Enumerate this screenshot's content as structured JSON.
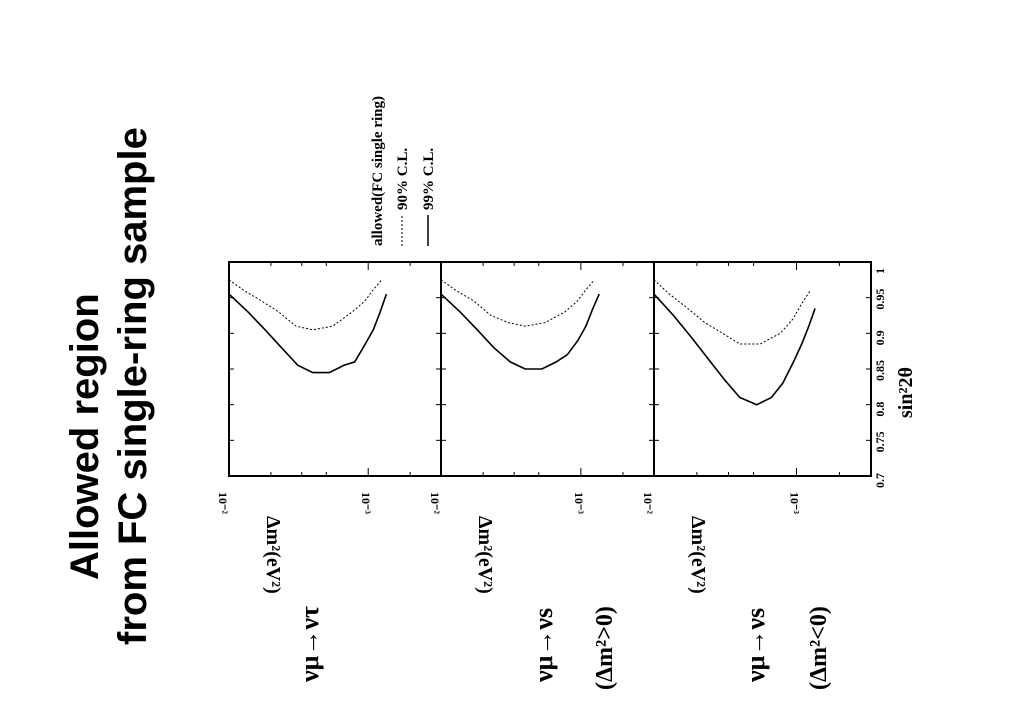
{
  "slide": {
    "title_line1": "Allowed region",
    "title_line2": "from FC single-ring sample"
  },
  "legend": {
    "title": "allowed(FC single ring)",
    "entry_90": "90% C.L.",
    "entry_99": "99% C.L."
  },
  "axes": {
    "x_label": "sin²2θ",
    "x_ticks": [
      "0.7",
      "0.75",
      "0.8",
      "0.85",
      "0.9",
      "0.95",
      "1"
    ],
    "y_label": "Δm²(eV²)",
    "y_tick_top": "10⁻²",
    "y_tick_mid": "10⁻³"
  },
  "panels": [
    {
      "label": "νμ→ντ",
      "sublabel": ""
    },
    {
      "label": "νμ→νs",
      "sublabel": "(Δm²>0)"
    },
    {
      "label": "νμ→νs",
      "sublabel": "(Δm²<0)"
    }
  ],
  "chart_data": {
    "type": "line",
    "x_axis": {
      "label": "sin²2θ",
      "range": [
        0.7,
        1.0
      ]
    },
    "y_axis": {
      "label": "Δm²(eV²)",
      "scale": "log",
      "range": [
        0.0003,
        0.01
      ]
    },
    "legend_position": "top-right",
    "series_styles": {
      "90% C.L.": "dotted",
      "99% C.L.": "solid"
    },
    "panels": [
      {
        "label": "νμ→ντ",
        "series": [
          {
            "name": "90% C.L.",
            "x": [
              0.975,
              0.96,
              0.945,
              0.93,
              0.91,
              0.905,
              0.91,
              0.93,
              0.945,
              0.96,
              0.975
            ],
            "y": [
              0.01,
              0.0078,
              0.0058,
              0.0044,
              0.0033,
              0.0025,
              0.0018,
              0.0013,
              0.00106,
              0.00093,
              0.0008
            ]
          },
          {
            "name": "99% C.L.",
            "x": [
              0.955,
              0.93,
              0.905,
              0.88,
              0.855,
              0.845,
              0.845,
              0.855,
              0.86,
              0.885,
              0.905,
              0.93,
              0.955
            ],
            "y": [
              0.01,
              0.0073,
              0.0055,
              0.0042,
              0.0032,
              0.0025,
              0.0019,
              0.0015,
              0.00125,
              0.00105,
              0.00092,
              0.00082,
              0.00074
            ]
          }
        ]
      },
      {
        "label": "νμ→νs (Δm²>0)",
        "series": [
          {
            "name": "90% C.L.",
            "x": [
              0.975,
              0.96,
              0.945,
              0.925,
              0.915,
              0.91,
              0.915,
              0.93,
              0.945,
              0.96,
              0.975
            ],
            "y": [
              0.01,
              0.0078,
              0.0058,
              0.0044,
              0.0033,
              0.0025,
              0.0018,
              0.0013,
              0.00106,
              0.00093,
              0.0008
            ]
          },
          {
            "name": "99% C.L.",
            "x": [
              0.955,
              0.93,
              0.905,
              0.88,
              0.86,
              0.85,
              0.85,
              0.86,
              0.87,
              0.89,
              0.91,
              0.935,
              0.955
            ],
            "y": [
              0.01,
              0.0073,
              0.0055,
              0.0042,
              0.0032,
              0.0025,
              0.0019,
              0.0015,
              0.00125,
              0.00105,
              0.00092,
              0.00082,
              0.00074
            ]
          }
        ]
      },
      {
        "label": "νμ→νs (Δm²<0)",
        "series": [
          {
            "name": "90% C.L.",
            "x": [
              0.975,
              0.955,
              0.935,
              0.915,
              0.9,
              0.885,
              0.885,
              0.9,
              0.92,
              0.94,
              0.96
            ],
            "y": [
              0.01,
              0.0078,
              0.0058,
              0.0044,
              0.0033,
              0.0025,
              0.0018,
              0.0013,
              0.00106,
              0.00093,
              0.0008
            ]
          },
          {
            "name": "99% C.L.",
            "x": [
              0.955,
              0.925,
              0.895,
              0.865,
              0.835,
              0.81,
              0.8,
              0.81,
              0.83,
              0.86,
              0.885,
              0.91,
              0.935
            ],
            "y": [
              0.01,
              0.0073,
              0.0055,
              0.0042,
              0.0032,
              0.0025,
              0.0019,
              0.0015,
              0.00125,
              0.00105,
              0.00092,
              0.00082,
              0.00074
            ]
          }
        ]
      }
    ]
  }
}
